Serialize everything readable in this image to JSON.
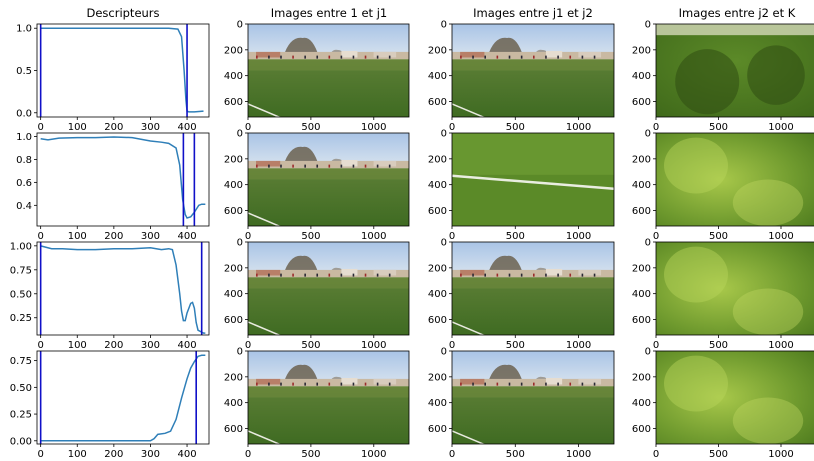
{
  "column_titles": [
    "Descripteurs",
    "Images entre 1 et j1",
    "Images entre j1 et j2",
    "Images entre j2 et K"
  ],
  "colors": {
    "curve": "#2f7fb8",
    "marker": "#1010c8",
    "sky": "#b9cde6",
    "grass_dark": "#3f6b22",
    "grass_light": "#7fa83a"
  },
  "chart_data": [
    {
      "type": "line",
      "xlim": [
        -10,
        460
      ],
      "ylim": [
        -0.05,
        1.05
      ],
      "xticks": [
        0,
        100,
        200,
        300,
        400
      ],
      "yticks": [
        0.0,
        0.5,
        1.0
      ],
      "yticklabels": [
        "0.0",
        "0.5",
        "1.0"
      ],
      "vlines": [
        0,
        400
      ],
      "x": [
        0,
        50,
        100,
        150,
        200,
        250,
        300,
        350,
        375,
        385,
        392,
        397,
        400,
        405,
        420,
        445
      ],
      "y": [
        1.0,
        1.0,
        1.0,
        1.0,
        1.0,
        1.0,
        1.0,
        1.0,
        0.99,
        0.9,
        0.5,
        0.15,
        0.02,
        0.01,
        0.01,
        0.02
      ]
    },
    {
      "type": "line",
      "xlim": [
        -10,
        460
      ],
      "ylim": [
        0.22,
        1.03
      ],
      "xticks": [
        0,
        100,
        200,
        300,
        400
      ],
      "yticks": [
        0.4,
        0.6,
        0.8,
        1.0
      ],
      "yticklabels": [
        "0.4",
        "0.6",
        "0.8",
        "1.0"
      ],
      "vlines": [
        390,
        420
      ],
      "x": [
        0,
        20,
        50,
        100,
        150,
        200,
        250,
        300,
        330,
        350,
        370,
        380,
        388,
        395,
        400,
        410,
        420,
        432,
        440,
        450
      ],
      "y": [
        0.98,
        0.97,
        0.985,
        0.99,
        0.99,
        0.995,
        0.99,
        0.96,
        0.95,
        0.94,
        0.9,
        0.75,
        0.45,
        0.32,
        0.29,
        0.3,
        0.34,
        0.4,
        0.41,
        0.41
      ]
    },
    {
      "type": "line",
      "xlim": [
        -10,
        460
      ],
      "ylim": [
        0.07,
        1.04
      ],
      "xticks": [
        0,
        100,
        200,
        300,
        400
      ],
      "yticks": [
        0.25,
        0.5,
        0.75,
        1.0
      ],
      "yticklabels": [
        "0.25",
        "0.50",
        "0.75",
        "1.00"
      ],
      "vlines": [
        0,
        440
      ],
      "x": [
        0,
        30,
        60,
        100,
        150,
        200,
        250,
        300,
        330,
        350,
        360,
        370,
        380,
        385,
        390,
        395,
        400,
        410,
        415,
        420,
        425,
        430,
        440,
        445,
        450
      ],
      "y": [
        1.0,
        0.97,
        0.97,
        0.96,
        0.96,
        0.97,
        0.97,
        0.98,
        0.96,
        0.97,
        0.96,
        0.8,
        0.5,
        0.32,
        0.22,
        0.22,
        0.3,
        0.4,
        0.41,
        0.35,
        0.2,
        0.12,
        0.1,
        0.09,
        0.09
      ]
    },
    {
      "type": "line",
      "xlim": [
        -10,
        460
      ],
      "ylim": [
        -0.03,
        0.84
      ],
      "xticks": [
        0,
        100,
        200,
        300,
        400
      ],
      "yticks": [
        0.0,
        0.25,
        0.5,
        0.75
      ],
      "yticklabels": [
        "0.00",
        "0.25",
        "0.50",
        "0.75"
      ],
      "vlines": [
        0,
        425
      ],
      "x": [
        0,
        50,
        100,
        150,
        200,
        250,
        300,
        310,
        320,
        340,
        355,
        370,
        385,
        400,
        410,
        420,
        430,
        440,
        450
      ],
      "y": [
        0.0,
        0.0,
        0.0,
        0.0,
        0.0,
        0.0,
        0.0,
        0.02,
        0.06,
        0.07,
        0.09,
        0.2,
        0.4,
        0.58,
        0.68,
        0.74,
        0.79,
        0.8,
        0.8
      ]
    }
  ],
  "image_axes": {
    "xticks": [
      0,
      500,
      1000
    ],
    "yticks": [
      0,
      200,
      400,
      600
    ],
    "xlim": [
      0,
      1280
    ],
    "ylim": [
      720,
      0
    ]
  },
  "image_grid": [
    [
      "stadium",
      "stadium",
      "grass_shadow"
    ],
    [
      "stadium",
      "grass_line",
      "grass_bright"
    ],
    [
      "stadium",
      "stadium",
      "grass_bright"
    ],
    [
      "stadium",
      "stadium",
      "grass_bright"
    ]
  ]
}
